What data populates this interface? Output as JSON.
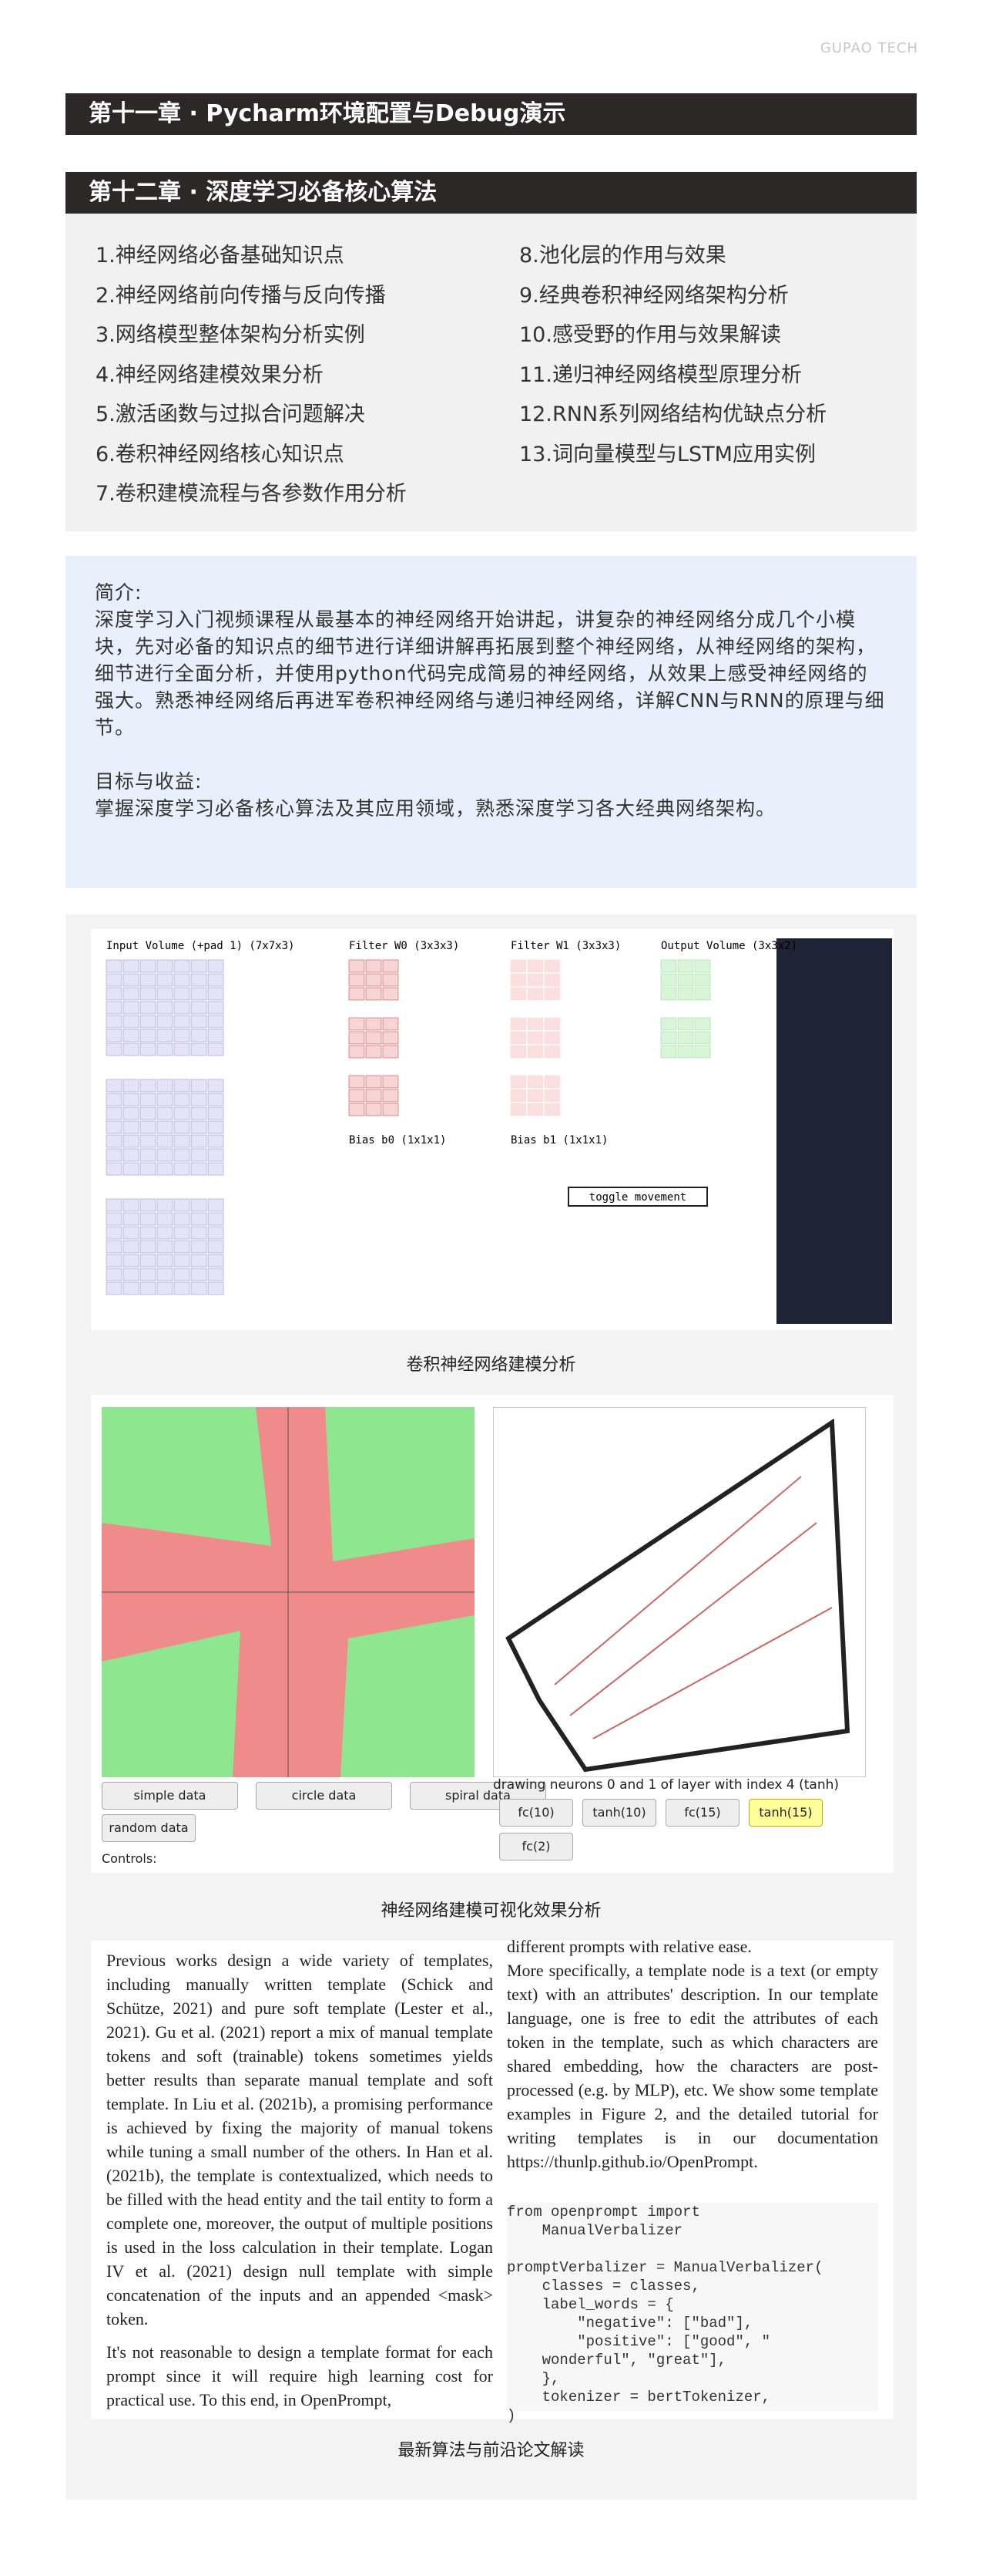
{
  "header": {
    "brand": "GUPAO TECH"
  },
  "chapters": [
    {
      "title": "第十一章 · Pycharm环境配置与Debug演示"
    },
    {
      "title": "第十二章 · 深度学习必备核心算法",
      "items": [
        "1.神经网络必备基础知识点",
        "2.神经网络前向传播与反向传播",
        "3.网络模型整体架构分析实例",
        "4.神经网络建模效果分析",
        "5.激活函数与过拟合问题解决",
        "6.卷积神经网络核心知识点",
        "7.卷积建模流程与各参数作用分析",
        "8.池化层的作用与效果",
        "9.经典卷积神经网络架构分析",
        "10.感受野的作用与效果解读",
        "11.递归神经网络模型原理分析",
        "12.RNN系列网络结构优缺点分析",
        "13.词向量模型与LSTM应用实例"
      ]
    }
  ],
  "intro": {
    "label": "简介:",
    "text": "深度学习入门视频课程从最基本的神经网络开始讲起，讲复杂的神经网络分成几个小模块，先对必备的知识点的细节进行详细讲解再拓展到整个神经网络，从神经网络的架构，细节进行全面分析，并使用python代码完成简易的神经网络，从效果上感受神经网络的强大。熟悉神经网络后再进军卷积神经网络与递归神经网络，详解CNN与RNN的原理与细节。",
    "goal_label": "目标与收益:",
    "goal_text": "掌握深度学习必备核心算法及其应用领域，熟悉深度学习各大经典网络架构。"
  },
  "figures": [
    {
      "caption": "卷积神经网络建模分析",
      "headers": [
        "Input Volume (+pad 1) (7x7x3)",
        "Filter W0 (3x3x3)",
        "Filter W1 (3x3x3)",
        "Output Volume (3x3x2)"
      ],
      "biases": [
        "Bias b0 (1x1x1)",
        "Bias b1 (1x1x1)"
      ],
      "button": "toggle movement"
    },
    {
      "caption": "神经网络建模可视化效果分析",
      "data_buttons": [
        "simple data",
        "circle data",
        "spiral data",
        "random data"
      ],
      "controls": "Controls:",
      "description": "drawing neurons 0 and 1 of layer with index 4 (tanh)",
      "layer_buttons": [
        "fc(10)",
        "tanh(10)",
        "fc(15)",
        "tanh(15)",
        "fc(2)"
      ]
    },
    {
      "caption": "最新算法与前沿论文解读",
      "left": [
        "Previous works design a wide variety of templates, including manually written template (Schick and Schütze, 2021) and pure soft template (Lester et al., 2021). Gu et al. (2021) report a mix of manual template tokens and soft (trainable) tokens sometimes yields better results than separate manual template and soft template. In Liu et al. (2021b), a promising performance is achieved by fixing the majority of manual tokens while tuning a small number of the others. In Han et al. (2021b), the template is contextualized, which needs to be filled with the head entity and the tail entity to form a complete one, moreover, the output of multiple positions is used in the loss calculation in their template. Logan IV et al. (2021) design null template with simple concatenation of the inputs and an appended <mask> token.",
        "It's not reasonable to design a template format for each prompt since it will require high learning cost for practical use. To this end, in OpenPrompt,"
      ],
      "right": [
        "different prompts with relative ease.",
        "More specifically, a template node is a text (or empty text) with an attributes' description. In our template language, one is free to edit the attributes of each token in the template, such as which characters are shared embedding, how the characters are post-processed (e.g. by MLP), etc. We show some template examples in Figure 2, and the detailed tutorial for writing templates is in our documentation https://thunlp.github.io/OpenPrompt."
      ],
      "code": [
        "from openprompt import",
        "    ManualVerbalizer",
        "",
        "promptVerbalizer = ManualVerbalizer(",
        "    classes = classes,",
        "    label_words = {",
        "        \"negative\": [\"bad\"],",
        "        \"positive\": [\"good\", \"",
        "    wonderful\", \"great\"],",
        "    },",
        "    tokenizer = bertTokenizer,",
        ")"
      ]
    }
  ]
}
